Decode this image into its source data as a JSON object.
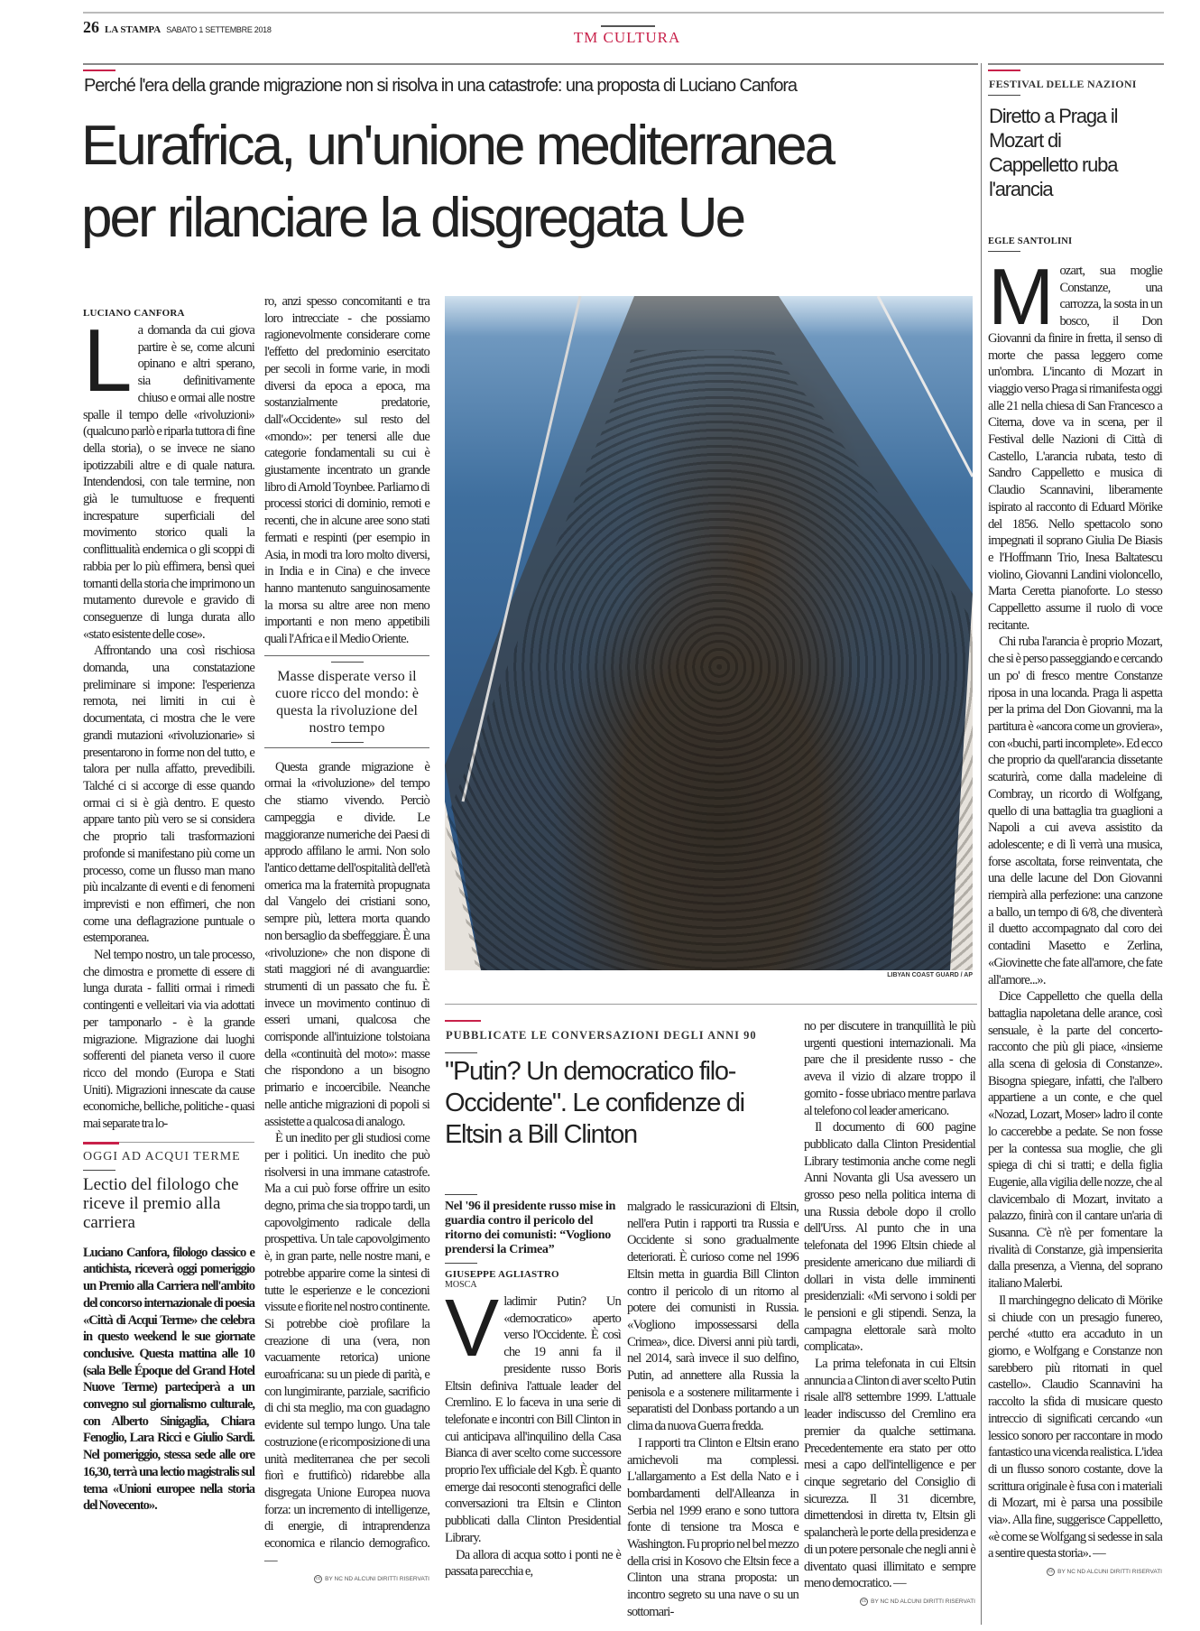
{
  "masthead": {
    "page_number": "26",
    "paper": "LA STAMPA",
    "date": "SABATO 1 SETTEMBRE 2018",
    "section": "TM CULTURA",
    "accent": "#c8214a"
  },
  "lead": {
    "kicker": "Perché l'era della grande migrazione non si risolva in una catastrofe: una proposta di Luciano Canfora",
    "headline_1": "Eurafrica, un'unione mediterranea",
    "headline_2": "per rilanciare la disgregata Ue",
    "byline": "LUCIANO CANFORA",
    "drop_cap": "L",
    "col1": [
      "a domanda da cui giova partire è se, come alcuni opinano e altri sperano, sia definitivamente chiuso e ormai alle nostre spalle il tempo delle «rivoluzioni» (qualcuno parlò e riparla tuttora di fine della storia), o se invece ne siano ipotizzabili altre e di quale natura. Intendendosi, con tale termine, non già le tumultuose e frequenti increspature superficiali del movimento storico quali la conflittualità endemica o gli scoppi di rabbia per lo più effimera, bensì quei tornanti della storia che imprimono un mutamento durevole e gravido di conseguenze di lunga durata allo «stato esistente delle cose».",
      "Affrontando una così rischiosa domanda, una constatazione preliminare si impone: l'esperienza remota, nei limiti in cui è documentata, ci mostra che le vere grandi mutazioni «rivoluzionarie» si presentarono in forme non del tutto, e talora per nulla affatto, prevedibili. Talché ci si accorge di esse quando ormai ci si è già dentro. E questo appare tanto più vero se si considera che proprio tali trasformazioni profonde si manifestano più come un processo, come un flusso man mano più incalzante di eventi e di fenomeni imprevisti e non effimeri, che non come una deflagrazione puntuale o estemporanea.",
      "Nel tempo nostro, un tale processo, che dimostra e promette di essere di lunga durata - falliti ormai i rimedi contingenti e velleitari via via adottati per tamponarlo - è la grande migrazione. Migrazione dai luoghi sofferenti del pianeta verso il cuore ricco del mondo (Europa e Stati Uniti). Migrazioni innescate da cause economiche, belliche, politiche - quasi mai separate tra lo-"
    ],
    "col2_top": "ro, anzi spesso concomitanti e tra loro intrecciate - che possiamo ragionevolmente considerare come l'effetto del predominio esercitato per secoli in forme varie, in modi diversi da epoca a epoca, ma sostanzialmente predatorie, dall'«Occidente» sul resto del «mondo»: per tenersi alle due categorie fondamentali su cui è giustamente incentrato un grande libro di Arnold Toynbee. Parliamo di processi storici di dominio, remoti e recenti, che in alcune aree sono stati fermati e respinti (per esempio in Asia, in modi tra loro molto diversi, in India e in Cina) e che invece hanno mantenuto sanguinosamente la morsa su altre aree non meno importanti e non meno appetibili quali l'Africa e il Medio Oriente.",
    "pull_quote": "Masse disperate verso il cuore ricco del mondo: è questa la rivoluzione del nostro tempo",
    "col2": [
      "Questa grande migrazione è ormai la «rivoluzione» del tempo che stiamo vivendo. Perciò campeggia e divide. Le maggioranze numeriche dei Paesi di approdo affilano le armi. Non solo l'antico dettame dell'ospitalità dell'età omerica ma la fraternità propugnata dal Vangelo dei cristiani sono, sempre più, lettera morta quando non bersaglio da sbeffeggiare. È una «rivoluzione» che non dispone di stati maggiori né di avanguardie: strumenti di un passato che fu. È invece un movimento continuo di esseri umani, qualcosa che corrisponde all'intuizione tolstoiana della «continuità del moto»: masse che rispondono a un bisogno primario e incoercibile. Neanche nelle antiche migrazioni di popoli si assistette a qualcosa di analogo.",
      "È un inedito per gli studiosi come per i politici. Un inedito che può risolversi in una immane catastrofe. Ma a cui può forse offrire un esito degno, prima che sia troppo tardi, un capovolgimento radicale della prospettiva. Un tale capovolgimento è, in gran parte, nelle nostre mani, e potrebbe apparire come la sintesi di tutte le esperienze e le concezioni vissute e fiorite nel nostro continente. Si potrebbe cioè profilare la creazione di una (vera, non vacuamente retorica) unione euroafricana: su un piede di parità, e con lungimirante, parziale, sacrificio di chi sta meglio, ma con guadagno evidente sul tempo lungo. Una tale costruzione (e ricomposizione di una unità mediterranea che per secoli fiorì e fruttificò) ridarebbe alla disgregata Unione Europea nuova forza: un incremento di intelligenze, di energie, di intraprendenza economica e rilancio demografico. —"
    ],
    "copyright": "BY NC ND ALCUNI DIRITTI RISERVATI",
    "photo_credit": "LIBYAN COAST GUARD / AP"
  },
  "acqui": {
    "kicker": "OGGI AD ACQUI TERME",
    "headline": "Lectio del filologo che riceve il premio alla carriera",
    "text": "Luciano Canfora, filologo classico e antichista, riceverà oggi pomeriggio un Premio alla Carriera nell'ambito del concorso internazionale di poesia «Città di Acqui Terme» che celebra in questo weekend le sue giornate conclusive. Questa mattina alle 10 (sala Belle Époque del Grand Hotel Nuove Terme) parteciperà a un convegno sul giornalismo culturale, con Alberto Sinigaglia, Chiara Fenoglio, Lara Ricci e Giulio Sardi. Nel pomeriggio, stessa sede alle ore 16,30, terrà una lectio magistralis sul tema «Unioni europee nella storia del Novecento»."
  },
  "putin": {
    "kicker": "PUBBLICATE LE CONVERSAZIONI DEGLI ANNI 90",
    "headline": "\"Putin? Un democratico filo-Occidente\". Le confidenze di Eltsin a Bill Clinton",
    "deck": "Nel '96 il presidente russo mise in guardia contro il pericolo del ritorno dei comunisti: “Vogliono prendersi la Crimea”",
    "byline": "GIUSEPPE AGLIASTRO",
    "dateline": "MOSCA",
    "drop_cap": "V",
    "colA": [
      "ladimir Putin? Un «democratico» aperto verso l'Occidente. È così che 19 anni fa il presidente russo Boris Eltsin definiva l'attuale leader del Cremlino. E lo faceva in una serie di telefonate e incontri con Bill Clinton in cui anticipava all'inquilino della Casa Bianca di aver scelto come successore proprio l'ex ufficiale del Kgb. È quanto emerge dai resoconti stenografici delle conversazioni tra Eltsin e Clinton pubblicati dalla Clinton Presidential Library.",
      "Da allora di acqua sotto i ponti ne è passata parecchia e,"
    ],
    "colB": [
      "malgrado le rassicurazioni di Eltsin, nell'era Putin i rapporti tra Russia e Occidente si sono gradualmente deteriorati. È curioso come nel 1996 Eltsin metta in guardia Bill Clinton contro il pericolo di un ritorno al potere dei comunisti in Russia. «Vogliono impossessarsi della Crimea», dice. Diversi anni più tardi, nel 2014, sarà invece il suo delfino, Putin, ad annettere alla Russia la penisola e a sostenere militarmente i separatisti del Donbass portando a un clima da nuova Guerra fredda.",
      "I rapporti tra Clinton e Eltsin erano amichevoli ma complessi. L'allargamento a Est della Nato e i bombardamenti dell'Alleanza in Serbia nel 1999 erano e sono tuttora fonte di tensione tra Mosca e Washington. Fu proprio nel bel mezzo della crisi in Kosovo che Eltsin fece a Clinton una strana proposta: un incontro segreto su una nave o su un sottomari-"
    ],
    "colC": [
      "no per discutere in tranquillità le più urgenti questioni internazionali. Ma pare che il presidente russo - che aveva il vizio di alzare troppo il gomito - fosse ubriaco mentre parlava al telefono col leader americano.",
      "Il documento di 600 pagine pubblicato dalla Clinton Presidential Library testimonia anche come negli Anni Novanta gli Usa avessero un grosso peso nella politica interna di una Russia debole dopo il crollo dell'Urss. Al punto che in una telefonata del 1996 Eltsin chiede al presidente americano due miliardi di dollari in vista delle imminenti presidenziali: «Mi servono i soldi per le pensioni e gli stipendi. Senza, la campagna elettorale sarà molto complicata».",
      "La prima telefonata in cui Eltsin annuncia a Clinton di aver scelto Putin risale all'8 settembre 1999. L'attuale leader indiscusso del Cremlino era premier da qualche settimana. Precedentemente era stato per otto mesi a capo dell'intelligence e per cinque segretario del Consiglio di sicurezza. Il 31 dicembre, dimettendosi in diretta tv, Eltsin gli spalancherà le porte della presidenza e di un potere personale che negli anni è diventato quasi illimitato e sempre meno democratico. —"
    ],
    "copyright": "BY NC ND ALCUNI DIRITTI RISERVATI"
  },
  "festival": {
    "kicker": "FESTIVAL DELLE NAZIONI",
    "headline": "Diretto a Praga il Mozart di Cappelletto ruba l'arancia",
    "byline": "EGLE SANTOLINI",
    "drop_cap": "M",
    "paragraphs": [
      "ozart, sua moglie Constanze, una carrozza, la sosta in un bosco, il Don Giovanni da finire in fretta, il senso di morte che passa leggero come un'ombra. L'incanto di Mozart in viaggio verso Praga si rimanifesta oggi alle 21 nella chiesa di San Francesco a Citerna, dove va in scena, per il Festival delle Nazioni di Città di Castello, L'arancia rubata, testo di Sandro Cappelletto e musica di Claudio Scannavini, liberamente ispirato al racconto di Eduard Mörike del 1856. Nello spettacolo sono impegnati il soprano Giulia De Biasis e l'Hoffmann Trio, Inesa Baltatescu violino, Giovanni Landini violoncello, Marta Ceretta pianoforte. Lo stesso Cappelletto assume il ruolo di voce recitante.",
      "Chi ruba l'arancia è proprio Mozart, che si è perso passeggiando e cercando un po' di fresco mentre Constanze riposa in una locanda. Praga li aspetta per la prima del Don Giovanni, ma la partitura è «ancora come un groviera», con «buchi, parti incomplete». Ed ecco che proprio da quell'arancia dissetante scaturirà, come dalla madeleine di Combray, un ricordo di Wolfgang, quello di una battaglia tra guaglioni a Napoli a cui aveva assistito da adolescente; e di lì verrà una musica, forse ascoltata, forse reinventata, che una delle lacune del Don Giovanni riempirà alla perfezione: una canzone a ballo, un tempo di 6/8, che diventerà il duetto accompagnato dal coro dei contadini Masetto e Zerlina, «Giovinette che fate all'amore, che fate all'amore...».",
      "Dice Cappelletto che quella della battaglia napoletana delle arance, così sensuale, è la parte del concerto-racconto che più gli piace, «insieme alla scena di gelosia di Constanze». Bisogna spiegare, infatti, che l'albero appartiene a un conte, e che quel «Nozad, Lozart, Moser» ladro il conte lo caccerebbe a pedate. Se non fosse per la contessa sua moglie, che gli spiega di chi si tratti; e della figlia Eugenie, alla vigilia delle nozze, che al clavicembalo di Mozart, invitato a palazzo, finirà con il cantare un'aria di Susanna. C'è n'è per fomentare la rivalità di Constanze, già impensierita dalla presenza, a Vienna, del soprano italiano Malerbi.",
      "Il marchingegno delicato di Mörike si chiude con un presagio funereo, perché «tutto era accaduto in un giorno, e Wolfgang e Constanze non sarebbero più ritornati in quel castello». Claudio Scannavini ha raccolto la sfida di musicare questo intreccio di significati cercando «un lessico sonoro per raccontare in modo fantastico una vicenda realistica. L'idea di un flusso sonoro costante, dove la scrittura originale è fusa con i materiali di Mozart, mi è parsa una possibile via». Alla fine, suggerisce Cappelletto, «è come se Wolfgang si sedesse in sala a sentire questa storia». —"
    ],
    "copyright": "BY NC ND ALCUNI DIRITTI RISERVATI"
  }
}
